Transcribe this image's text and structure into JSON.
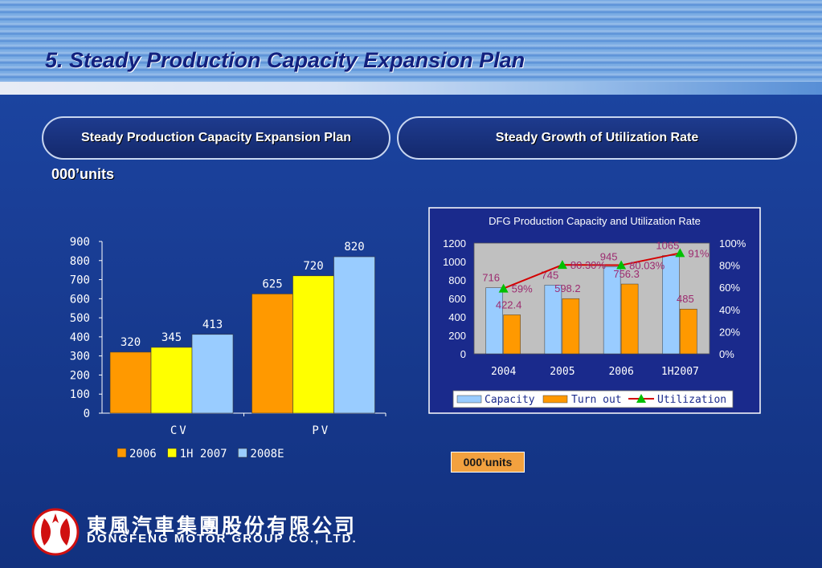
{
  "slide": {
    "title": "5. Steady Production Capacity Expansion Plan",
    "left_header": "Steady Production Capacity Expansion Plan",
    "right_header": "Steady Growth of Utilization Rate",
    "units_label": "000’units",
    "units_box": "000’units",
    "company_cn": "東風汽車集團股份有限公司",
    "company_en": "DONGFENG MOTOR GROUP CO., LTD.",
    "logo_icon": "dongfeng-logo-icon"
  },
  "colors": {
    "orange": "#FF9900",
    "yellow": "#FFFF00",
    "lightblue": "#99CCFF",
    "utilization_line": "#D40000",
    "marker": "#00C000",
    "plot_bg": "#C0C0C0",
    "chart2_bg": "#1A2A8C"
  },
  "chart_data": [
    {
      "type": "bar",
      "categories": [
        "CV",
        "PV"
      ],
      "series": [
        {
          "name": "2006",
          "values": [
            320,
            625
          ],
          "color": "#FF9900"
        },
        {
          "name": "1H 2007",
          "values": [
            345,
            720
          ],
          "color": "#FFFF00"
        },
        {
          "name": "2008E",
          "values": [
            413,
            820
          ],
          "color": "#99CCFF"
        }
      ],
      "yticks": [
        "0",
        "100",
        "200",
        "300",
        "400",
        "500",
        "600",
        "700",
        "800",
        "900"
      ],
      "ylim": [
        0,
        900
      ],
      "legend": "bottom"
    },
    {
      "type": "bar",
      "title": "DFG Production Capacity and Utilization Rate",
      "categories": [
        "2004",
        "2005",
        "2006",
        "1H2007"
      ],
      "series": [
        {
          "name": "Capacity",
          "values": [
            716,
            745,
            945,
            1065
          ],
          "color": "#99CCFF"
        },
        {
          "name": "Turn out",
          "values": [
            422.4,
            598.2,
            756.3,
            485
          ],
          "color": "#FF9900"
        },
        {
          "name": "Utilization",
          "type": "line",
          "axis": "right",
          "values": [
            59,
            80.3,
            80.03,
            91
          ],
          "labels": [
            "59%",
            "80.30%",
            "80.03%",
            "91%"
          ],
          "color": "#D40000"
        }
      ],
      "value_labels_capacity": [
        "716",
        "745",
        "945",
        "1065"
      ],
      "value_labels_turnout": [
        "422.4",
        "598.2",
        "756.3",
        "485"
      ],
      "yticks_left": [
        "0",
        "200",
        "400",
        "600",
        "800",
        "1000",
        "1200"
      ],
      "yticks_right": [
        "0%",
        "20%",
        "40%",
        "60%",
        "80%",
        "100%"
      ],
      "ylim_left": [
        0,
        1200
      ],
      "ylim_right": [
        0,
        100
      ],
      "legend": "bottom"
    }
  ]
}
